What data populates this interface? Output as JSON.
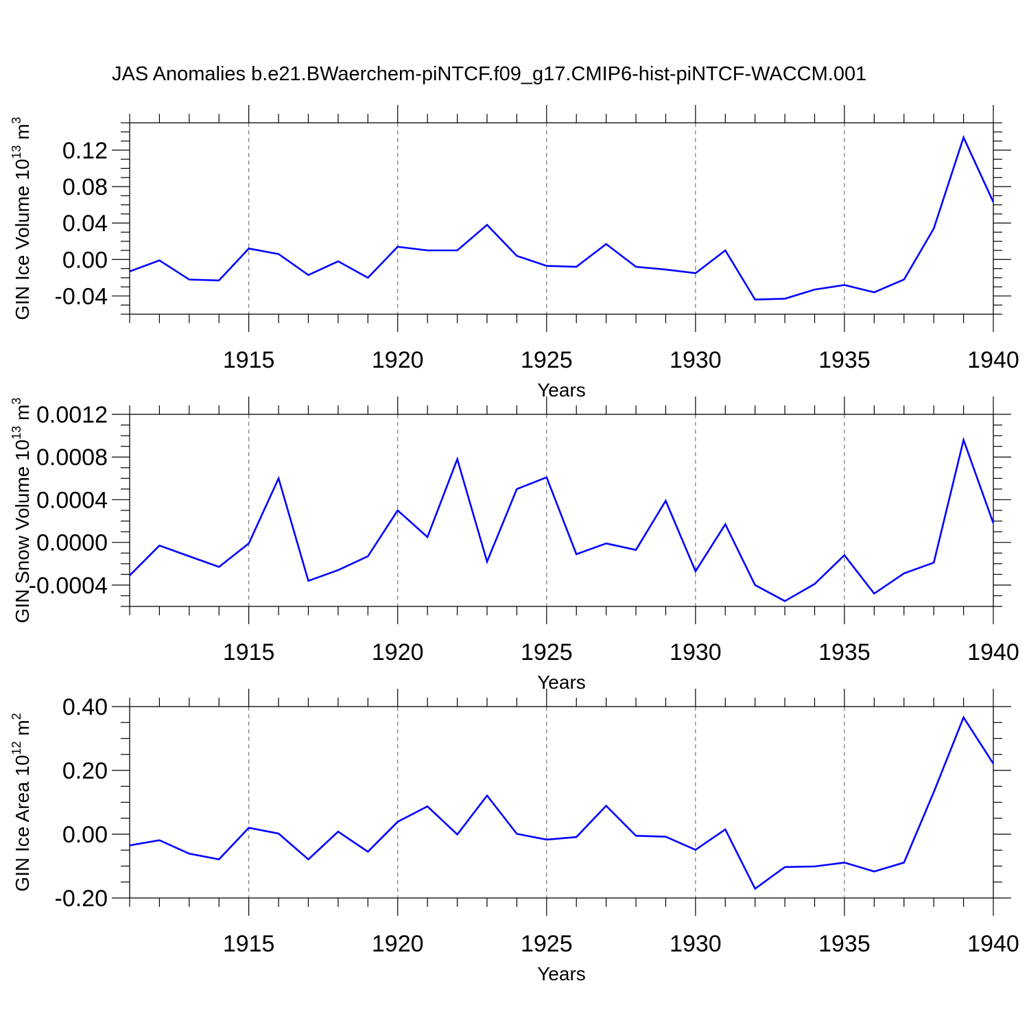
{
  "figure": {
    "title": "JAS Anomalies b.e21.BWaerchem-piNTCF.f09_g17.CMIP6-hist-piNTCF-WACCM.001",
    "line_color": "#0000ff"
  },
  "chart_data": [
    {
      "type": "line",
      "title": "JAS Anomalies b.e21.BWaerchem-piNTCF.f09_g17.CMIP6-hist-piNTCF-WACCM.001",
      "xlabel": "Years",
      "ylabel": "GIN Ice Volume 10",
      "ylabel_exp": "13",
      "ylabel_unit": " m",
      "ylabel_unit_exp": "3",
      "xlim": [
        1911,
        1940
      ],
      "ylim": [
        -0.06,
        0.15
      ],
      "xticks": [
        1915,
        1920,
        1925,
        1930,
        1935,
        1940
      ],
      "xtick_labels": [
        "1915",
        "1920",
        "1925",
        "1930",
        "1935",
        "1940"
      ],
      "yticks": [
        -0.04,
        0.0,
        0.04,
        0.08,
        0.12
      ],
      "ytick_labels": [
        "-0.04",
        "0.00",
        "0.04",
        "0.08",
        "0.12"
      ],
      "grid": "vertical dashed at major x ticks",
      "x": [
        1911,
        1912,
        1913,
        1914,
        1915,
        1916,
        1917,
        1918,
        1919,
        1920,
        1921,
        1922,
        1923,
        1924,
        1925,
        1926,
        1927,
        1928,
        1929,
        1930,
        1931,
        1932,
        1933,
        1934,
        1935,
        1936,
        1937,
        1938,
        1939,
        1940
      ],
      "series": [
        {
          "name": "GIN Ice Volume anomaly",
          "values": [
            -0.013,
            -0.001,
            -0.022,
            -0.023,
            0.012,
            0.006,
            -0.017,
            -0.002,
            -0.02,
            0.014,
            0.01,
            0.01,
            0.038,
            0.004,
            -0.007,
            -0.008,
            0.017,
            -0.008,
            -0.011,
            -0.015,
            0.01,
            -0.044,
            -0.043,
            -0.033,
            -0.028,
            -0.036,
            -0.022,
            0.034,
            0.134,
            0.063
          ]
        }
      ]
    },
    {
      "type": "line",
      "xlabel": "Years",
      "ylabel": "GIN Snow Volume 10",
      "ylabel_exp": "13",
      "ylabel_unit": " m",
      "ylabel_unit_exp": "3",
      "xlim": [
        1911,
        1940
      ],
      "ylim": [
        -0.0006,
        0.0012
      ],
      "xticks": [
        1915,
        1920,
        1925,
        1930,
        1935,
        1940
      ],
      "xtick_labels": [
        "1915",
        "1920",
        "1925",
        "1930",
        "1935",
        "1940"
      ],
      "yticks": [
        -0.0004,
        0.0,
        0.0004,
        0.0008,
        0.0012
      ],
      "ytick_labels": [
        "-0.0004",
        "0.0000",
        "0.0004",
        "0.0008",
        "0.0012"
      ],
      "grid": "vertical dashed at major x ticks",
      "x": [
        1911,
        1912,
        1913,
        1914,
        1915,
        1916,
        1917,
        1918,
        1919,
        1920,
        1921,
        1922,
        1923,
        1924,
        1925,
        1926,
        1927,
        1928,
        1929,
        1930,
        1931,
        1932,
        1933,
        1934,
        1935,
        1936,
        1937,
        1938,
        1939,
        1940
      ],
      "series": [
        {
          "name": "GIN Snow Volume anomaly",
          "values": [
            -0.00031,
            -3e-05,
            -0.00013,
            -0.00023,
            -1e-05,
            0.0006,
            -0.00036,
            -0.00026,
            -0.00013,
            0.0003,
            5e-05,
            0.00078,
            -0.00018,
            0.0005,
            0.00061,
            -0.00011,
            -1e-05,
            -7e-05,
            0.00039,
            -0.00027,
            0.00017,
            -0.0004,
            -0.00055,
            -0.00039,
            -0.00012,
            -0.00048,
            -0.00029,
            -0.00019,
            0.00096,
            0.00018
          ]
        }
      ]
    },
    {
      "type": "line",
      "xlabel": "Years",
      "ylabel": "GIN Ice Area 10",
      "ylabel_exp": "12",
      "ylabel_unit": " m",
      "ylabel_unit_exp": "2",
      "xlim": [
        1911,
        1940
      ],
      "ylim": [
        -0.2,
        0.4
      ],
      "xticks": [
        1915,
        1920,
        1925,
        1930,
        1935,
        1940
      ],
      "xtick_labels": [
        "1915",
        "1920",
        "1925",
        "1930",
        "1935",
        "1940"
      ],
      "yticks": [
        -0.2,
        0.0,
        0.2,
        0.4
      ],
      "ytick_labels": [
        "-0.20",
        "0.00",
        "0.20",
        "0.40"
      ],
      "grid": "vertical dashed at major x ticks",
      "x": [
        1911,
        1912,
        1913,
        1914,
        1915,
        1916,
        1917,
        1918,
        1919,
        1920,
        1921,
        1922,
        1923,
        1924,
        1925,
        1926,
        1927,
        1928,
        1929,
        1930,
        1931,
        1932,
        1933,
        1934,
        1935,
        1936,
        1937,
        1938,
        1939,
        1940
      ],
      "series": [
        {
          "name": "GIN Ice Area anomaly",
          "values": [
            -0.035,
            -0.019,
            -0.061,
            -0.079,
            0.02,
            0.002,
            -0.079,
            0.008,
            -0.055,
            0.039,
            0.087,
            -0.001,
            0.121,
            0.001,
            -0.017,
            -0.009,
            0.089,
            -0.005,
            -0.008,
            -0.049,
            0.015,
            -0.171,
            -0.103,
            -0.101,
            -0.089,
            -0.117,
            -0.089,
            0.132,
            0.366,
            0.221
          ]
        }
      ]
    }
  ]
}
